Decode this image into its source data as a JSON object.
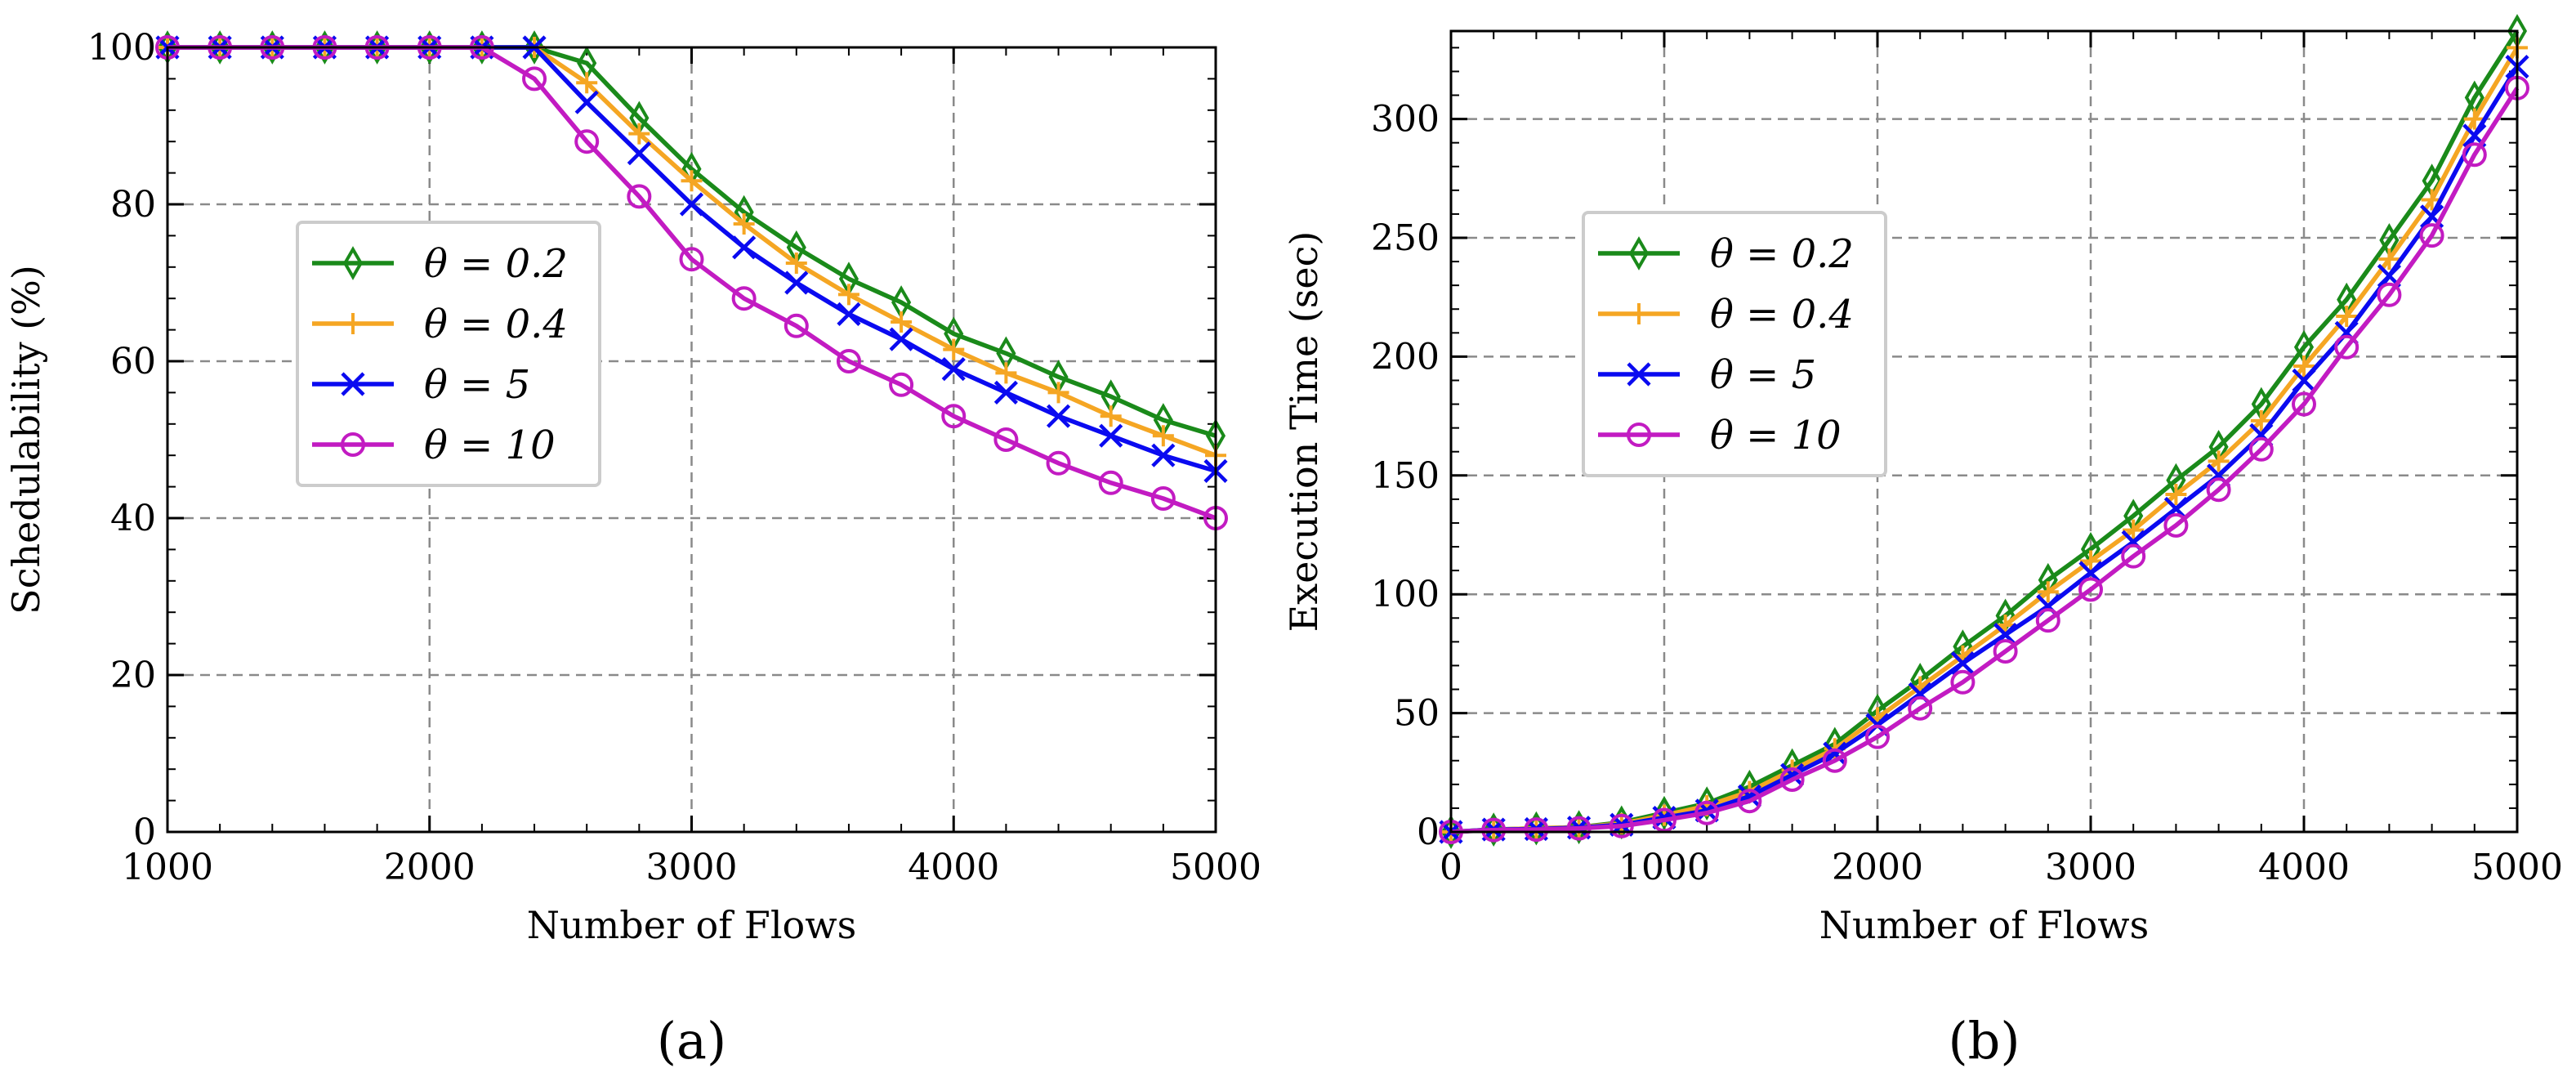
{
  "chart_data": [
    {
      "type": "line",
      "panel_label": "(a)",
      "xlabel": "Number of Flows",
      "ylabel": "Schedulability (%)",
      "xlim": [
        1000,
        5000
      ],
      "ylim": [
        0,
        100
      ],
      "xticks": [
        1000,
        2000,
        3000,
        4000,
        5000
      ],
      "yticks": [
        0,
        20,
        40,
        60,
        80,
        100
      ],
      "grid": true,
      "legend_position": "center-left",
      "x": [
        1000,
        1200,
        1400,
        1600,
        1800,
        2000,
        2200,
        2400,
        2600,
        2800,
        3000,
        3200,
        3400,
        3600,
        3800,
        4000,
        4200,
        4400,
        4600,
        4800,
        5000
      ],
      "series": [
        {
          "name": "θ = 0.2",
          "color": "#1a8a1a",
          "marker": "diamond",
          "values": [
            100,
            100,
            100,
            100,
            100,
            100,
            100,
            100,
            98,
            91,
            84.5,
            79,
            74.5,
            70.5,
            67.5,
            63.5,
            61,
            58,
            55.5,
            52.5,
            50.5
          ]
        },
        {
          "name": "θ = 0.4",
          "color": "#f5a623",
          "marker": "plus",
          "values": [
            100,
            100,
            100,
            100,
            100,
            100,
            100,
            100,
            95.5,
            89,
            83,
            77.5,
            72.5,
            68.5,
            65,
            61.5,
            58.5,
            56,
            53,
            50.5,
            48
          ]
        },
        {
          "name": "θ = 5",
          "color": "#0a0af0",
          "marker": "x",
          "values": [
            100,
            100,
            100,
            100,
            100,
            100,
            100,
            100,
            93,
            86.5,
            80,
            74.5,
            70,
            66,
            62.8,
            59,
            56,
            53,
            50.5,
            48,
            46
          ]
        },
        {
          "name": "θ = 10",
          "color": "#c21bc2",
          "marker": "circle",
          "values": [
            100,
            100,
            100,
            100,
            100,
            100,
            100,
            96,
            88,
            81,
            73,
            68,
            64.5,
            60,
            57,
            53,
            50,
            47,
            44.5,
            42.5,
            40
          ]
        }
      ]
    },
    {
      "type": "line",
      "panel_label": "(b)",
      "xlabel": "Number of Flows",
      "ylabel": "Execution Time (sec)",
      "xlim": [
        0,
        5000
      ],
      "ylim": [
        0,
        337
      ],
      "xticks": [
        0,
        1000,
        2000,
        3000,
        4000,
        5000
      ],
      "yticks": [
        0,
        50,
        100,
        150,
        200,
        250,
        300
      ],
      "grid": true,
      "legend_position": "upper-left",
      "x": [
        0,
        200,
        400,
        600,
        800,
        1000,
        1200,
        1400,
        1600,
        1800,
        2000,
        2200,
        2400,
        2600,
        2800,
        3000,
        3200,
        3400,
        3600,
        3800,
        4000,
        4200,
        4400,
        4600,
        4800,
        5000
      ],
      "series": [
        {
          "name": "θ = 0.2",
          "color": "#1a8a1a",
          "marker": "diamond",
          "values": [
            0,
            1,
            1.5,
            2,
            4,
            8,
            12,
            19,
            28,
            37,
            51,
            64,
            78,
            91,
            106,
            119,
            133,
            148,
            162,
            180,
            204,
            224,
            249,
            274,
            309,
            337
          ]
        },
        {
          "name": "θ = 0.4",
          "color": "#f5a623",
          "marker": "plus",
          "values": [
            0,
            1,
            1.5,
            2,
            3.5,
            7,
            11,
            17,
            26,
            35,
            48,
            61,
            74,
            87,
            101,
            114,
            127,
            142,
            156,
            173,
            196,
            217,
            241,
            266,
            300,
            330
          ]
        },
        {
          "name": "θ = 5",
          "color": "#0a0af0",
          "marker": "x",
          "values": [
            0,
            1,
            1.2,
            1.8,
            3,
            6,
            9,
            15,
            24,
            33,
            45,
            58,
            71,
            83,
            95,
            109,
            122,
            136,
            150,
            167,
            190,
            210,
            234,
            259,
            293,
            322
          ]
        },
        {
          "name": "θ = 10",
          "color": "#c21bc2",
          "marker": "circle",
          "values": [
            0,
            0.8,
            1,
            1.5,
            2.5,
            5,
            8,
            13,
            22,
            30,
            40,
            52,
            63,
            76,
            89,
            102,
            116,
            129,
            144,
            161,
            180,
            204,
            226,
            251,
            285,
            313
          ]
        }
      ]
    }
  ]
}
